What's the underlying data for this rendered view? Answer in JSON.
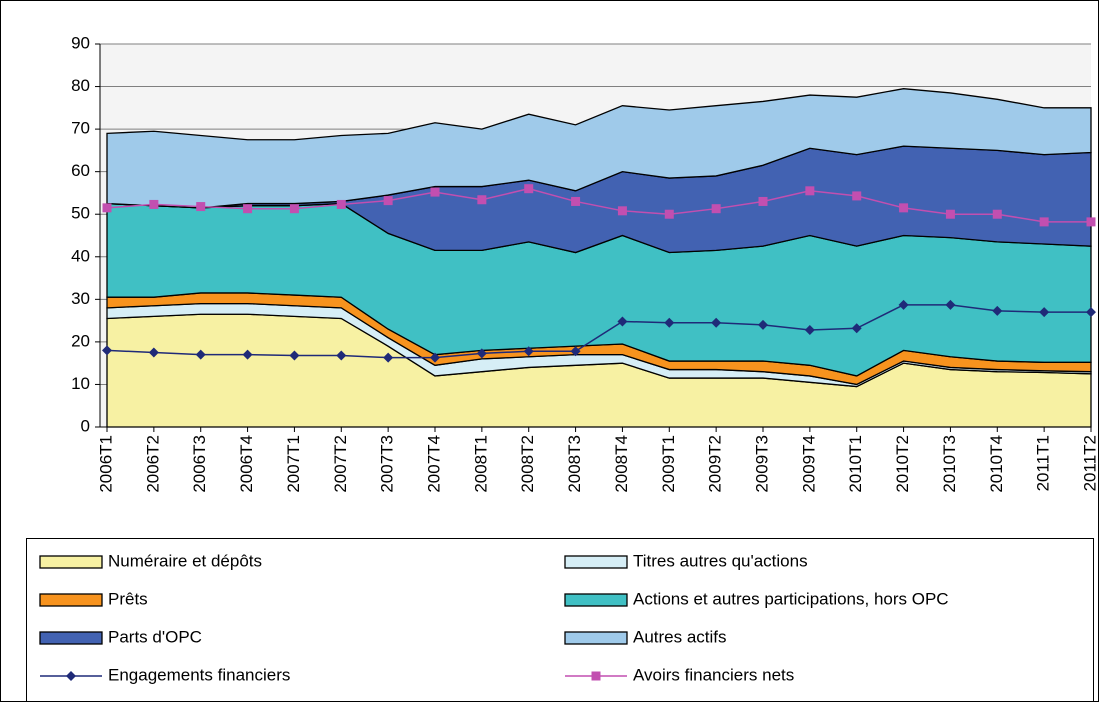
{
  "chart_data": {
    "type": "area",
    "categories": [
      "2006T1",
      "2006T2",
      "2006T3",
      "2006T4",
      "2007T1",
      "2007T2",
      "2007T3",
      "2007T4",
      "2008T1",
      "2008T2",
      "2008T3",
      "2008T4",
      "2009T1",
      "2009T2",
      "2009T3",
      "2009T4",
      "2010T1",
      "2010T2",
      "2010T3",
      "2010T4",
      "2011T1",
      "2011T2"
    ],
    "ylim": [
      0,
      90
    ],
    "yticks": [
      0,
      10,
      20,
      30,
      40,
      50,
      60,
      70,
      80,
      90
    ],
    "grid": true,
    "stacked": true,
    "series": [
      {
        "name": "Numéraire et dépôts",
        "type": "area",
        "color": "#f7f1a3",
        "values": [
          25.5,
          26,
          26.5,
          26.5,
          26,
          25.5,
          19,
          12,
          13,
          14,
          14.5,
          15,
          11.5,
          11.5,
          11.5,
          10.5,
          9.5,
          15,
          13.5,
          13,
          12.8,
          12.5
        ]
      },
      {
        "name": "Titres autres qu'actions",
        "type": "area",
        "color": "#d6eef6",
        "values": [
          2.5,
          2.5,
          2.5,
          2.5,
          2.5,
          2.5,
          2,
          2.5,
          3,
          2.5,
          2.5,
          2,
          2,
          2,
          1.5,
          1.5,
          0.5,
          0.5,
          0.5,
          0.5,
          0.4,
          0.5
        ]
      },
      {
        "name": "Prêts",
        "type": "area",
        "color": "#f7931e",
        "values": [
          2.5,
          2,
          2.5,
          2.5,
          2.5,
          2.5,
          2,
          2.5,
          2,
          2,
          2,
          2.5,
          2,
          2,
          2.5,
          2.5,
          2,
          2.5,
          2.5,
          2,
          2,
          2.2
        ]
      },
      {
        "name": "Actions et autres participations, hors OPC",
        "type": "area",
        "color": "#40c0c4",
        "values": [
          22,
          21.5,
          20,
          20.5,
          21,
          22,
          22.5,
          24.5,
          23.5,
          25,
          22,
          25.5,
          25.5,
          26,
          27,
          30.5,
          30.5,
          27,
          28,
          28,
          27.8,
          27.3
        ]
      },
      {
        "name": "Parts d'OPC",
        "type": "area",
        "color": "#4262b2",
        "values": [
          0,
          0,
          0,
          0.5,
          0.5,
          0.5,
          9,
          15,
          15,
          14.5,
          14.5,
          15,
          17.5,
          17.5,
          19,
          20.5,
          21.5,
          21,
          21,
          21.5,
          21,
          22
        ]
      },
      {
        "name": "Autres actifs",
        "type": "area",
        "color": "#9fcaea",
        "values": [
          16.5,
          17.5,
          17,
          15,
          15,
          15.5,
          14.5,
          15,
          13.5,
          15.5,
          15.5,
          15.5,
          16,
          16.5,
          15,
          12.5,
          13.5,
          13.5,
          13,
          12,
          11,
          10.5
        ]
      },
      {
        "name": "Engagements financiers",
        "type": "line",
        "marker": "diamond",
        "color": "#1f2a78",
        "values": [
          18,
          17.5,
          17,
          17,
          16.8,
          16.8,
          16.3,
          16.3,
          17.3,
          17.8,
          17.8,
          24.8,
          24.5,
          24.5,
          24,
          22.8,
          23.2,
          28.7,
          28.7,
          27.3,
          27,
          27
        ]
      },
      {
        "name": "Avoirs financiers nets",
        "type": "line",
        "marker": "square",
        "color": "#c24fb0",
        "values": [
          51.5,
          52.3,
          51.8,
          51.3,
          51.3,
          52.3,
          53.2,
          55.2,
          53.4,
          56,
          53,
          50.8,
          50,
          51.3,
          53,
          55.5,
          54.3,
          51.5,
          50,
          50,
          48.2,
          48.2
        ]
      }
    ]
  }
}
